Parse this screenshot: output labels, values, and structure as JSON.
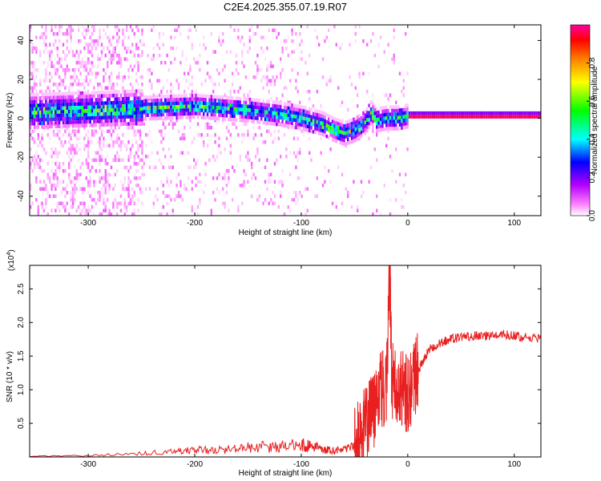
{
  "title": "C2E4.2025.355.07.19.R07",
  "chart_data": [
    {
      "type": "heatmap",
      "xlabel": "Height of straight line (km)",
      "ylabel": "Frequency (Hz)",
      "xlim": [
        -355,
        125
      ],
      "ylim": [
        -50,
        48
      ],
      "xticks": [
        -300,
        -200,
        -100,
        0,
        100
      ],
      "yticks": [
        -40,
        -20,
        0,
        20,
        40
      ],
      "colorbar": {
        "label": "Normalized spectral amplitude",
        "range": [
          0.0,
          1.0
        ],
        "ticks": [
          0.0,
          0.2,
          0.4,
          0.6,
          0.8
        ],
        "colors": [
          "#ffffff",
          "#ff80ff",
          "#b400ff",
          "#0000ff",
          "#00ffff",
          "#00ff00",
          "#ffff00",
          "#ff8000",
          "#ff0000",
          "#ff00a0"
        ]
      },
      "ridge": {
        "x": [
          -355,
          -300,
          -250,
          -200,
          -150,
          -120,
          -100,
          -80,
          -70,
          -60,
          -50,
          -40,
          -35,
          -30,
          -20,
          -10,
          0,
          125
        ],
        "frequency": [
          3,
          4,
          5,
          6,
          4,
          2,
          0,
          -3,
          -6,
          -8,
          -6,
          -2,
          3,
          -1,
          0,
          0,
          1,
          1
        ]
      }
    },
    {
      "type": "line",
      "xlabel": "Height of straight line (km)",
      "ylabel": "SNR (10 * v/v)",
      "scale_note": "(x10",
      "scale_exp": "4",
      "xlim": [
        -355,
        125
      ],
      "ylim": [
        0,
        2.85
      ],
      "xticks": [
        -300,
        -200,
        -100,
        0,
        100
      ],
      "yticks": [
        0.5,
        1.0,
        1.5,
        2.0,
        2.5
      ],
      "ytick_labels": [
        "0.5",
        "1.0",
        "1.5",
        "2.0",
        "2.5"
      ],
      "series": [
        {
          "name": "SNR",
          "color": "#e82020",
          "x": [
            -355,
            -300,
            -250,
            -220,
            -200,
            -180,
            -160,
            -140,
            -120,
            -100,
            -90,
            -80,
            -70,
            -60,
            -50,
            -45,
            -40,
            -35,
            -30,
            -25,
            -20,
            -17,
            -15,
            -10,
            -5,
            0,
            5,
            10,
            15,
            20,
            30,
            40,
            50,
            60,
            70,
            80,
            90,
            100,
            110,
            125
          ],
          "y": [
            0.01,
            0.02,
            0.05,
            0.08,
            0.1,
            0.1,
            0.12,
            0.15,
            0.15,
            0.18,
            0.15,
            0.12,
            0.1,
            0.1,
            0.15,
            0.3,
            0.45,
            0.6,
            0.8,
            1.0,
            1.0,
            2.85,
            1.1,
            1.1,
            1.0,
            0.95,
            1.05,
            1.3,
            1.45,
            1.6,
            1.7,
            1.75,
            1.78,
            1.8,
            1.8,
            1.8,
            1.82,
            1.8,
            1.78,
            1.76
          ]
        }
      ]
    }
  ]
}
